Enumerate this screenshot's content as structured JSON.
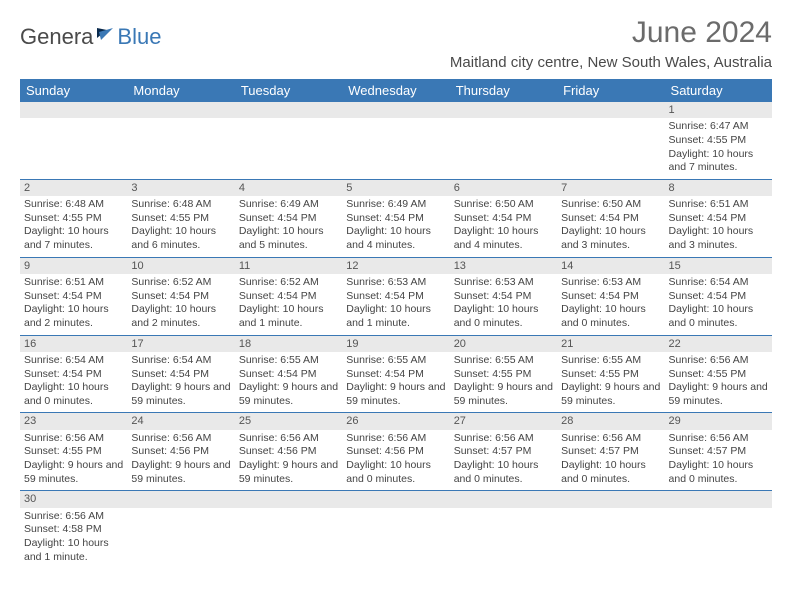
{
  "logo": {
    "text_a": "Genera",
    "text_b": "Blue"
  },
  "title": "June 2024",
  "location": "Maitland city centre, New South Wales, Australia",
  "colors": {
    "header_bg": "#3a78b5",
    "header_text": "#ffffff",
    "daybar_bg": "#e9e9e9",
    "row_border": "#3a78b5",
    "body_text": "#444444",
    "title_text": "#6b6b6b"
  },
  "weekdays": [
    "Sunday",
    "Monday",
    "Tuesday",
    "Wednesday",
    "Thursday",
    "Friday",
    "Saturday"
  ],
  "weeks": [
    [
      null,
      null,
      null,
      null,
      null,
      null,
      {
        "d": "1",
        "sr": "Sunrise: 6:47 AM",
        "ss": "Sunset: 4:55 PM",
        "dl": "Daylight: 10 hours and 7 minutes."
      }
    ],
    [
      {
        "d": "2",
        "sr": "Sunrise: 6:48 AM",
        "ss": "Sunset: 4:55 PM",
        "dl": "Daylight: 10 hours and 7 minutes."
      },
      {
        "d": "3",
        "sr": "Sunrise: 6:48 AM",
        "ss": "Sunset: 4:55 PM",
        "dl": "Daylight: 10 hours and 6 minutes."
      },
      {
        "d": "4",
        "sr": "Sunrise: 6:49 AM",
        "ss": "Sunset: 4:54 PM",
        "dl": "Daylight: 10 hours and 5 minutes."
      },
      {
        "d": "5",
        "sr": "Sunrise: 6:49 AM",
        "ss": "Sunset: 4:54 PM",
        "dl": "Daylight: 10 hours and 4 minutes."
      },
      {
        "d": "6",
        "sr": "Sunrise: 6:50 AM",
        "ss": "Sunset: 4:54 PM",
        "dl": "Daylight: 10 hours and 4 minutes."
      },
      {
        "d": "7",
        "sr": "Sunrise: 6:50 AM",
        "ss": "Sunset: 4:54 PM",
        "dl": "Daylight: 10 hours and 3 minutes."
      },
      {
        "d": "8",
        "sr": "Sunrise: 6:51 AM",
        "ss": "Sunset: 4:54 PM",
        "dl": "Daylight: 10 hours and 3 minutes."
      }
    ],
    [
      {
        "d": "9",
        "sr": "Sunrise: 6:51 AM",
        "ss": "Sunset: 4:54 PM",
        "dl": "Daylight: 10 hours and 2 minutes."
      },
      {
        "d": "10",
        "sr": "Sunrise: 6:52 AM",
        "ss": "Sunset: 4:54 PM",
        "dl": "Daylight: 10 hours and 2 minutes."
      },
      {
        "d": "11",
        "sr": "Sunrise: 6:52 AM",
        "ss": "Sunset: 4:54 PM",
        "dl": "Daylight: 10 hours and 1 minute."
      },
      {
        "d": "12",
        "sr": "Sunrise: 6:53 AM",
        "ss": "Sunset: 4:54 PM",
        "dl": "Daylight: 10 hours and 1 minute."
      },
      {
        "d": "13",
        "sr": "Sunrise: 6:53 AM",
        "ss": "Sunset: 4:54 PM",
        "dl": "Daylight: 10 hours and 0 minutes."
      },
      {
        "d": "14",
        "sr": "Sunrise: 6:53 AM",
        "ss": "Sunset: 4:54 PM",
        "dl": "Daylight: 10 hours and 0 minutes."
      },
      {
        "d": "15",
        "sr": "Sunrise: 6:54 AM",
        "ss": "Sunset: 4:54 PM",
        "dl": "Daylight: 10 hours and 0 minutes."
      }
    ],
    [
      {
        "d": "16",
        "sr": "Sunrise: 6:54 AM",
        "ss": "Sunset: 4:54 PM",
        "dl": "Daylight: 10 hours and 0 minutes."
      },
      {
        "d": "17",
        "sr": "Sunrise: 6:54 AM",
        "ss": "Sunset: 4:54 PM",
        "dl": "Daylight: 9 hours and 59 minutes."
      },
      {
        "d": "18",
        "sr": "Sunrise: 6:55 AM",
        "ss": "Sunset: 4:54 PM",
        "dl": "Daylight: 9 hours and 59 minutes."
      },
      {
        "d": "19",
        "sr": "Sunrise: 6:55 AM",
        "ss": "Sunset: 4:54 PM",
        "dl": "Daylight: 9 hours and 59 minutes."
      },
      {
        "d": "20",
        "sr": "Sunrise: 6:55 AM",
        "ss": "Sunset: 4:55 PM",
        "dl": "Daylight: 9 hours and 59 minutes."
      },
      {
        "d": "21",
        "sr": "Sunrise: 6:55 AM",
        "ss": "Sunset: 4:55 PM",
        "dl": "Daylight: 9 hours and 59 minutes."
      },
      {
        "d": "22",
        "sr": "Sunrise: 6:56 AM",
        "ss": "Sunset: 4:55 PM",
        "dl": "Daylight: 9 hours and 59 minutes."
      }
    ],
    [
      {
        "d": "23",
        "sr": "Sunrise: 6:56 AM",
        "ss": "Sunset: 4:55 PM",
        "dl": "Daylight: 9 hours and 59 minutes."
      },
      {
        "d": "24",
        "sr": "Sunrise: 6:56 AM",
        "ss": "Sunset: 4:56 PM",
        "dl": "Daylight: 9 hours and 59 minutes."
      },
      {
        "d": "25",
        "sr": "Sunrise: 6:56 AM",
        "ss": "Sunset: 4:56 PM",
        "dl": "Daylight: 9 hours and 59 minutes."
      },
      {
        "d": "26",
        "sr": "Sunrise: 6:56 AM",
        "ss": "Sunset: 4:56 PM",
        "dl": "Daylight: 10 hours and 0 minutes."
      },
      {
        "d": "27",
        "sr": "Sunrise: 6:56 AM",
        "ss": "Sunset: 4:57 PM",
        "dl": "Daylight: 10 hours and 0 minutes."
      },
      {
        "d": "28",
        "sr": "Sunrise: 6:56 AM",
        "ss": "Sunset: 4:57 PM",
        "dl": "Daylight: 10 hours and 0 minutes."
      },
      {
        "d": "29",
        "sr": "Sunrise: 6:56 AM",
        "ss": "Sunset: 4:57 PM",
        "dl": "Daylight: 10 hours and 0 minutes."
      }
    ],
    [
      {
        "d": "30",
        "sr": "Sunrise: 6:56 AM",
        "ss": "Sunset: 4:58 PM",
        "dl": "Daylight: 10 hours and 1 minute."
      },
      null,
      null,
      null,
      null,
      null,
      null
    ]
  ]
}
